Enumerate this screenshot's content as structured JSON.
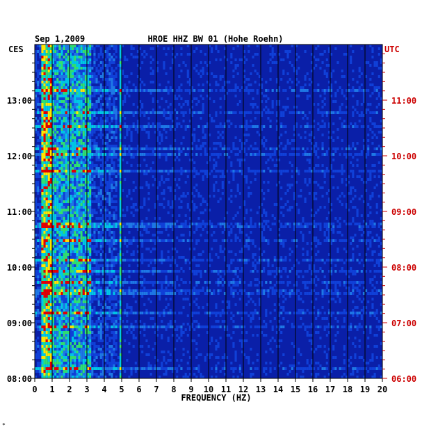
{
  "chart_data": {
    "type": "heatmap",
    "title": "HROE HHZ BW 01 (Hohe Roehn)",
    "date": "Sep 1,2009",
    "xlabel": "FREQUENCY (HZ)",
    "xlim": [
      0,
      20
    ],
    "x_ticks": [
      "0",
      "1",
      "2",
      "3",
      "4",
      "5",
      "6",
      "7",
      "8",
      "9",
      "10",
      "11",
      "12",
      "13",
      "14",
      "15",
      "16",
      "17",
      "18",
      "19",
      "20"
    ],
    "left_timezone": "CES",
    "right_timezone": "UTC",
    "left_time_ticks": [
      "08:00",
      "09:00",
      "10:00",
      "11:00",
      "12:00",
      "13:00"
    ],
    "right_time_ticks": [
      "06:00",
      "07:00",
      "08:00",
      "09:00",
      "10:00",
      "11:00"
    ],
    "time_range_ces_hours": [
      8,
      14
    ],
    "spectral_features": [
      {
        "name": "microseism band",
        "freq_range_hz": [
          0.3,
          1.0
        ],
        "intensity": "high"
      },
      {
        "name": "broadband noise",
        "freq_range_hz": [
          1.0,
          3.2
        ],
        "intensity": "medium"
      },
      {
        "name": "persistent line",
        "freq_hz": 4.9,
        "intensity": "medium"
      }
    ],
    "colors": {
      "background": "#0a1fa8",
      "low": "#0000c8",
      "mid": "#00c8e6",
      "high": "#ffe600",
      "peak": "#e60000",
      "grid": "#000000",
      "utc_labels": "#cc0000"
    },
    "footnote": "*"
  }
}
